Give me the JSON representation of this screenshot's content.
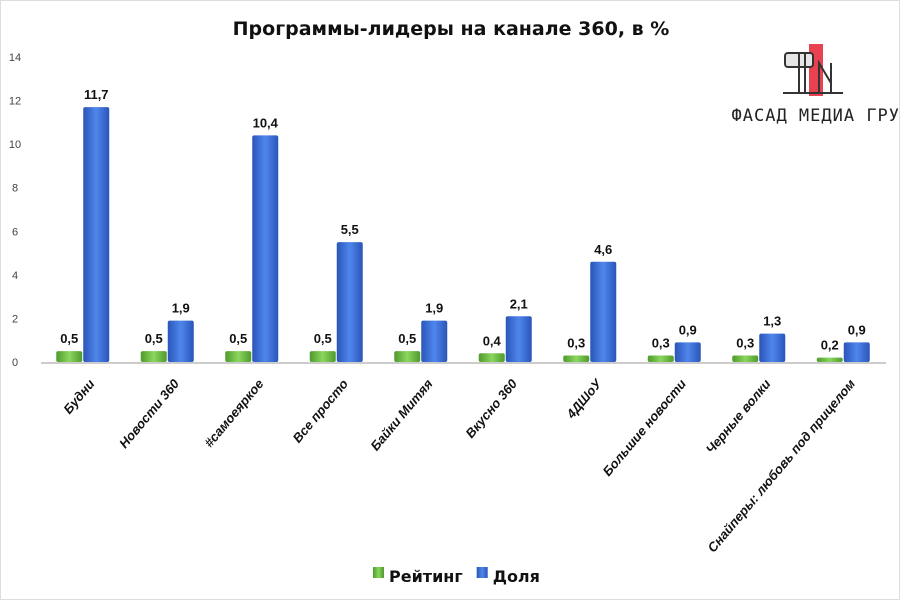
{
  "chart_data": {
    "type": "bar",
    "title": "Программы-лидеры на канале 360, в %",
    "categories": [
      "Будни",
      "Новости 360",
      "#самоеяркое",
      "Все просто",
      "Байки Митяя",
      "Вкусно 360",
      "4ДШоУ",
      "Большие новости",
      "Черные волки",
      "Снайперы: любовь под прицелом"
    ],
    "series": [
      {
        "name": "Рейтинг",
        "color": "#6cc04a",
        "values": [
          0.5,
          0.5,
          0.5,
          0.5,
          0.5,
          0.4,
          0.3,
          0.3,
          0.3,
          0.2
        ],
        "labels": [
          "0,5",
          "0,5",
          "0,5",
          "0,5",
          "0,5",
          "0,4",
          "0,3",
          "0,3",
          "0,3",
          "0,2"
        ]
      },
      {
        "name": "Доля",
        "color": "#3a6fd8",
        "values": [
          11.7,
          1.9,
          10.4,
          5.5,
          1.9,
          2.1,
          4.6,
          0.9,
          1.3,
          0.9
        ],
        "labels": [
          "11,7",
          "1,9",
          "10,4",
          "5,5",
          "1,9",
          "2,1",
          "4,6",
          "0,9",
          "1,3",
          "0,9"
        ]
      }
    ],
    "ylim": [
      0,
      14
    ],
    "yticks": [
      0,
      2,
      4,
      6,
      8,
      10,
      12,
      14
    ],
    "grid": false,
    "legend": "bottom"
  },
  "logo": {
    "text": "ФАСАД МЕДИА ГРУПП",
    "accent": "#e8414f"
  }
}
